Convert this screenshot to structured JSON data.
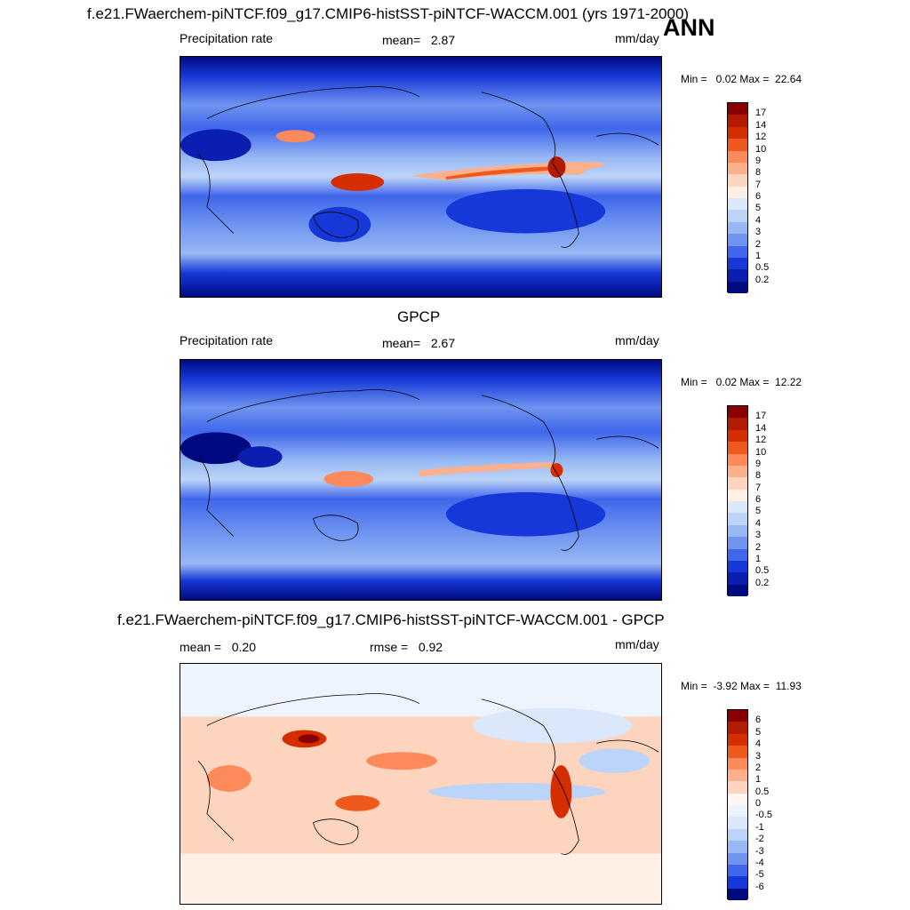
{
  "main_title": "f.e21.FWaerchem-piNTCF.f09_g17.CMIP6-histSST-piNTCF-WACCM.001 (yrs 1971-2000)",
  "season": "ANN",
  "panels": [
    {
      "variable": "Precipitation rate",
      "stat": "mean=   2.87",
      "units": "mm/day",
      "minmax": "Min =   0.02 Max =  22.64",
      "levels": [
        "17",
        "14",
        "12",
        "10",
        "9",
        "8",
        "7",
        "6",
        "5",
        "4",
        "3",
        "2",
        "1",
        "0.5",
        "0.2"
      ]
    },
    {
      "title": "GPCP",
      "variable": "Precipitation rate",
      "stat": "mean=   2.67",
      "units": "mm/day",
      "minmax": "Min =   0.02 Max =  12.22",
      "levels": [
        "17",
        "14",
        "12",
        "10",
        "9",
        "8",
        "7",
        "6",
        "5",
        "4",
        "3",
        "2",
        "1",
        "0.5",
        "0.2"
      ]
    },
    {
      "title": "f.e21.FWaerchem-piNTCF.f09_g17.CMIP6-histSST-piNTCF-WACCM.001 - GPCP",
      "stat": "mean =   0.20",
      "rmse": "rmse =   0.92",
      "units": "mm/day",
      "minmax": "Min =  -3.92 Max =  11.93",
      "levels": [
        "6",
        "5",
        "4",
        "3",
        "2",
        "1",
        "0.5",
        "0",
        "-0.5",
        "-1",
        "-2",
        "-3",
        "-4",
        "-5",
        "-6"
      ]
    }
  ],
  "colors": {
    "precip_scale": [
      "#880000",
      "#b31b00",
      "#d42e00",
      "#ee5a1e",
      "#fc8a5a",
      "#fcb08c",
      "#fdd4bd",
      "#fef0e4",
      "#dbe8fb",
      "#bcd4f8",
      "#97b8f4",
      "#6f94f0",
      "#3f66eb",
      "#1638d8",
      "#0a1fb0",
      "#000a80"
    ],
    "diff_scale": [
      "#880000",
      "#b31b00",
      "#d42e00",
      "#ee5a1e",
      "#fc8a5a",
      "#fcb08c",
      "#fdd4bd",
      "#fff7f0",
      "#eef4fe",
      "#dbe8fb",
      "#bcd4f8",
      "#97b8f4",
      "#6f94f0",
      "#3f66eb",
      "#1638d8",
      "#000a80"
    ]
  }
}
